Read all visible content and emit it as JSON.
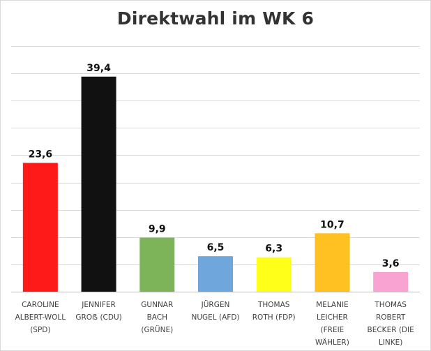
{
  "chart_data": {
    "type": "bar",
    "title": "Direktwahl im WK 6",
    "categories": [
      [
        "CAROLINE",
        "ALBERT-WOLL",
        "(SPD)"
      ],
      [
        "JENNIFER",
        "GROẞ (CDU)"
      ],
      [
        "GUNNAR",
        "BACH",
        "(GRÜNE)"
      ],
      [
        "JÜRGEN",
        "NUGEL (AFD)"
      ],
      [
        "THOMAS",
        "ROTH (FDP)"
      ],
      [
        "MELANIE",
        "LEICHER",
        "(FREIE",
        "WÄHLER)"
      ],
      [
        "THOMAS",
        "ROBERT",
        "BECKER (DIE",
        "LINKE)"
      ]
    ],
    "values": [
      23.6,
      39.4,
      9.9,
      6.5,
      6.3,
      10.7,
      3.6
    ],
    "value_labels": [
      "23,6",
      "39,4",
      "9,9",
      "6,5",
      "6,3",
      "10,7",
      "3,6"
    ],
    "colors": [
      "#ff1a1a",
      "#111111",
      "#7db45a",
      "#6fa6dc",
      "#ffff1a",
      "#ffc021",
      "#f9a3d3"
    ],
    "ylim": [
      0,
      45
    ],
    "y_grid_step": 5,
    "grid": true,
    "xlabel": "",
    "ylabel": ""
  }
}
